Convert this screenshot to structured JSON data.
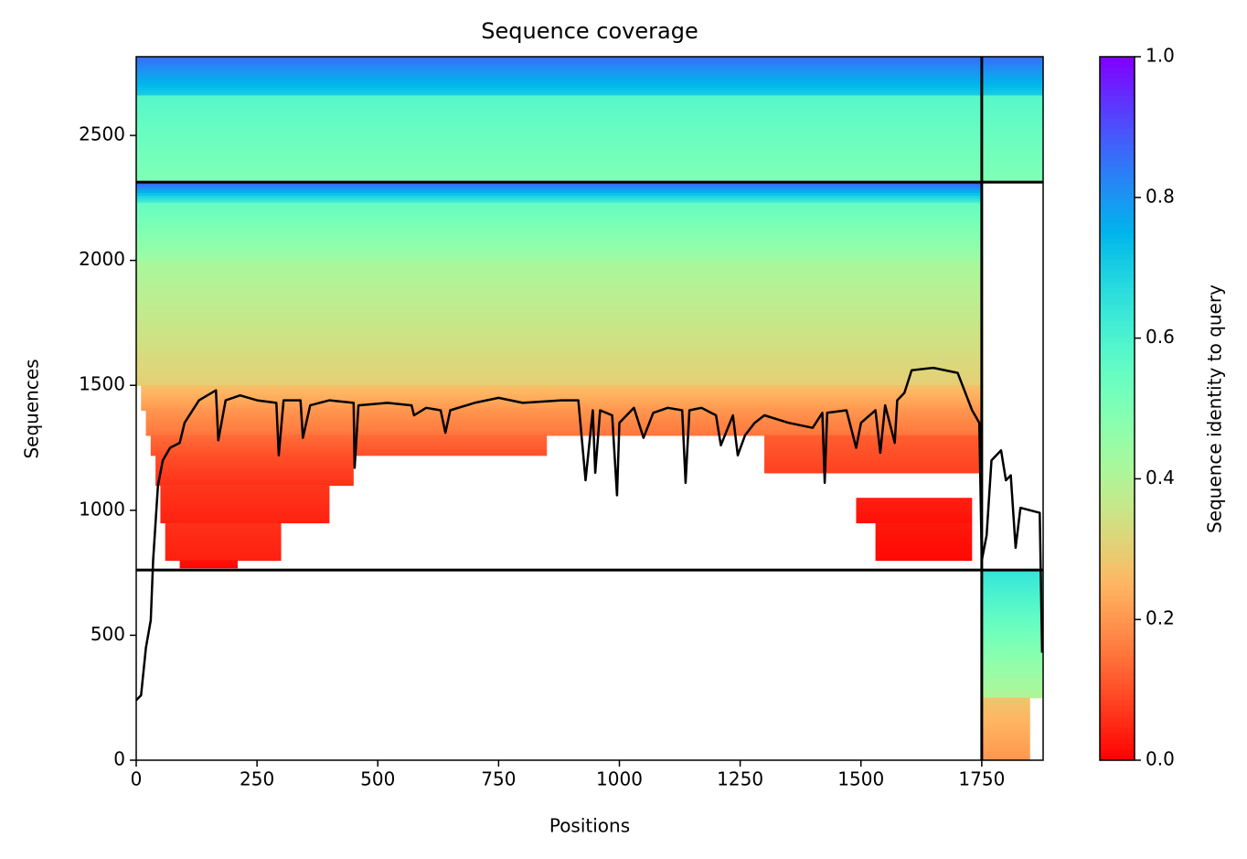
{
  "chart_data": {
    "type": "coverage",
    "title": "Sequence coverage",
    "x_label": "Positions",
    "y_label": "Sequences",
    "colorbar_label": "Sequence identity to query",
    "colormap": "rainbow_r",
    "xlim": [
      0,
      1877
    ],
    "ylim": [
      0,
      2815
    ],
    "xticks": [
      0,
      250,
      500,
      750,
      1000,
      1250,
      1500,
      1750
    ],
    "yticks": [
      0,
      500,
      1000,
      1500,
      2000,
      2500
    ],
    "clim": [
      0,
      1
    ],
    "cticks": [
      {
        "value": 0,
        "label": "0.0"
      },
      {
        "value": 0.2,
        "label": "0.2"
      },
      {
        "value": 0.4,
        "label": "0.4"
      },
      {
        "value": 0.6,
        "label": "0.6"
      },
      {
        "value": 0.8,
        "label": "0.8"
      },
      {
        "value": 1,
        "label": "1.0"
      }
    ],
    "h_dividers": [
      2313,
      761
    ],
    "v_dividers": [
      1750
    ],
    "divider_color": "#000000",
    "blocks": [
      {
        "x": [
          0,
          1877
        ],
        "y": [
          2660,
          2815
        ],
        "identity": [
          0.7,
          0.86
        ]
      },
      {
        "x": [
          0,
          1877
        ],
        "y": [
          2320,
          2660
        ],
        "identity": [
          0.5,
          0.58
        ]
      },
      {
        "x": [
          0,
          1750
        ],
        "y": [
          2230,
          2313
        ],
        "identity": [
          0.6,
          0.88
        ]
      },
      {
        "x": [
          0,
          1750
        ],
        "y": [
          2000,
          2230
        ],
        "identity": [
          0.44,
          0.55
        ]
      },
      {
        "x": [
          0,
          1750
        ],
        "y": [
          1500,
          2000
        ],
        "identity": [
          0.3,
          0.42
        ]
      },
      {
        "x": [
          10,
          1750
        ],
        "y": [
          1400,
          1500
        ],
        "identity": [
          0.2,
          0.27
        ]
      },
      {
        "x": [
          20,
          1750
        ],
        "y": [
          1300,
          1400
        ],
        "identity": [
          0.15,
          0.2
        ]
      },
      {
        "x": [
          30,
          850
        ],
        "y": [
          1220,
          1300
        ],
        "identity": [
          0.1,
          0.14
        ]
      },
      {
        "x": [
          1300,
          1750
        ],
        "y": [
          1150,
          1300
        ],
        "identity": [
          0.08,
          0.12
        ]
      },
      {
        "x": [
          40,
          450
        ],
        "y": [
          1100,
          1220
        ],
        "identity": [
          0.06,
          0.1
        ]
      },
      {
        "x": [
          50,
          400
        ],
        "y": [
          950,
          1100
        ],
        "identity": [
          0.04,
          0.07
        ]
      },
      {
        "x": [
          1490,
          1730
        ],
        "y": [
          950,
          1050
        ],
        "identity": [
          0.02,
          0.04
        ]
      },
      {
        "x": [
          1530,
          1730
        ],
        "y": [
          800,
          950
        ],
        "identity": [
          0.01,
          0.03
        ]
      },
      {
        "x": [
          60,
          300
        ],
        "y": [
          800,
          950
        ],
        "identity": [
          0.04,
          0.06
        ]
      },
      {
        "x": [
          90,
          210
        ],
        "y": [
          770,
          800
        ],
        "identity": [
          0.01,
          0.02
        ]
      },
      {
        "x": [
          1750,
          1877
        ],
        "y": [
          250,
          761
        ],
        "identity": [
          0.4,
          0.65
        ]
      },
      {
        "x": [
          1750,
          1850
        ],
        "y": [
          0,
          250
        ],
        "identity": [
          0.2,
          0.28
        ]
      }
    ],
    "coverage_color": "#000000",
    "coverage": {
      "x": [
        0,
        10,
        20,
        30,
        35,
        45,
        55,
        70,
        90,
        100,
        130,
        165,
        170,
        185,
        215,
        250,
        290,
        295,
        305,
        340,
        345,
        360,
        400,
        450,
        452,
        460,
        520,
        570,
        575,
        600,
        630,
        640,
        650,
        700,
        750,
        800,
        880,
        915,
        930,
        945,
        950,
        960,
        985,
        995,
        1000,
        1030,
        1050,
        1070,
        1100,
        1130,
        1137,
        1145,
        1170,
        1200,
        1210,
        1235,
        1245,
        1260,
        1280,
        1300,
        1350,
        1400,
        1420,
        1425,
        1430,
        1470,
        1490,
        1500,
        1530,
        1540,
        1550,
        1570,
        1575,
        1590,
        1605,
        1650,
        1700,
        1730,
        1745,
        1750,
        1760,
        1770,
        1790,
        1800,
        1810,
        1820,
        1830,
        1850,
        1870,
        1875
      ],
      "values": [
        240,
        260,
        450,
        560,
        800,
        1100,
        1200,
        1250,
        1270,
        1350,
        1440,
        1480,
        1280,
        1440,
        1460,
        1440,
        1430,
        1220,
        1440,
        1440,
        1290,
        1420,
        1440,
        1430,
        1170,
        1420,
        1430,
        1420,
        1380,
        1410,
        1400,
        1310,
        1400,
        1430,
        1450,
        1430,
        1440,
        1440,
        1120,
        1400,
        1150,
        1400,
        1380,
        1060,
        1350,
        1410,
        1290,
        1390,
        1410,
        1400,
        1110,
        1400,
        1410,
        1380,
        1260,
        1380,
        1220,
        1300,
        1350,
        1380,
        1350,
        1330,
        1390,
        1110,
        1390,
        1400,
        1250,
        1350,
        1400,
        1230,
        1420,
        1270,
        1440,
        1470,
        1560,
        1570,
        1550,
        1400,
        1350,
        800,
        900,
        1200,
        1240,
        1120,
        1140,
        850,
        1010,
        1000,
        990,
        430
      ]
    }
  }
}
